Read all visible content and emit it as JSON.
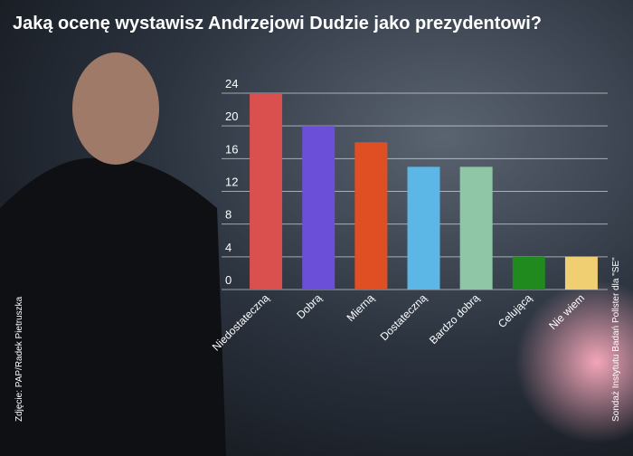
{
  "chart_data": {
    "type": "bar",
    "title": "Jaką ocenę wystawisz Andrzejowi Dudzie jako prezydentowi?",
    "categories": [
      "Niedostateczną",
      "Dobrą",
      "Mierną",
      "Dostateczną",
      "Bardzo dobrą",
      "Celującą",
      "Nie wiem"
    ],
    "values": [
      24,
      20,
      18,
      15,
      15,
      4,
      4
    ],
    "colors": [
      "#d9504f",
      "#6c4fd9",
      "#e04f24",
      "#5cb6e6",
      "#8ec6a6",
      "#208a1f",
      "#f0cf72"
    ],
    "ylim": [
      0,
      24
    ],
    "yticks": [
      0,
      4,
      8,
      12,
      16,
      20,
      24
    ],
    "grid": true,
    "photo_credit": "Zdjęcie: PAP/Radek Pietruszka",
    "source": "Sondaż Instytutu Badań Pollster dla \"SE\""
  }
}
